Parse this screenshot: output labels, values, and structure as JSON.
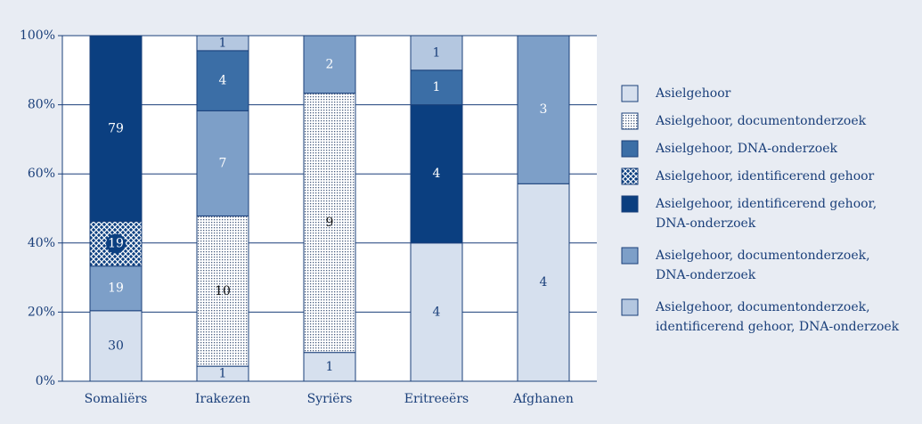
{
  "chart_data": {
    "type": "bar",
    "stacking": "percent",
    "categories": [
      "Somaliërs",
      "Irakezen",
      "Syriërs",
      "Eritreeërs",
      "Afghanen"
    ],
    "series": [
      {
        "name": "Asielgehoor",
        "color": "#d6e0ee",
        "values": [
          30,
          1,
          1,
          4,
          4
        ]
      },
      {
        "name": "Asielgehoor, documentonderzoek",
        "color": "#ffffff",
        "pattern": "dots",
        "values": [
          0,
          10,
          9,
          0,
          0
        ]
      },
      {
        "name": "Asielgehoor, DNA-onderzoek",
        "color": "#3b6ea6",
        "values": [
          0,
          4,
          0,
          1,
          0
        ]
      },
      {
        "name": "Asielgehoor, identificerend gehoor",
        "color": "#0b3f80",
        "pattern": "crosshatch",
        "values": [
          19,
          0,
          0,
          0,
          0
        ]
      },
      {
        "name": "Asielgehoor, identificerend gehoor, DNA-onderzoek",
        "color": "#0b3f80",
        "values": [
          79,
          0,
          0,
          4,
          0
        ]
      },
      {
        "name": "Asielgehoor, documentonderzoek, DNA-onderzoek",
        "color": "#7d9fc8",
        "values": [
          19,
          7,
          2,
          0,
          3
        ]
      },
      {
        "name": "Asielgehoor, documentonderzoek, identificerend gehoor, DNA-onderzoek",
        "color": "#b4c7e0",
        "values": [
          0,
          1,
          0,
          1,
          0
        ]
      }
    ],
    "ylim": [
      0,
      100
    ],
    "yticks": [
      {
        "value": 0,
        "label": "0%"
      },
      {
        "value": 20,
        "label": "20%"
      },
      {
        "value": 40,
        "label": "40%"
      },
      {
        "value": 60,
        "label": "60%"
      },
      {
        "value": 80,
        "label": "80%"
      },
      {
        "value": 100,
        "label": "100%"
      }
    ],
    "grid": true,
    "legend": "right"
  }
}
